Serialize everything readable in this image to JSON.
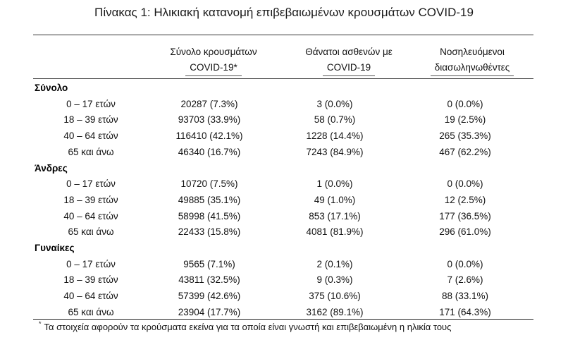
{
  "title": "Πίνακας 1: Ηλικιακή κατανομή επιβεβαιωμένων κρουσμάτων COVID-19",
  "headers": {
    "col1": [
      "Σύνολο κρουσμάτων",
      "COVID-19*"
    ],
    "col2": [
      "Θάνατοι ασθενών με",
      "COVID-19"
    ],
    "col3": [
      "Νοσηλευόμενοι",
      "διασωληνωθέντες"
    ]
  },
  "groups": [
    {
      "name": "Σύνολο",
      "rows": [
        {
          "age": "0 – 17 ετών",
          "cases": "20287 (7.3%)",
          "deaths": "3 (0.0%)",
          "intubated": "0 (0.0%)"
        },
        {
          "age": "18 – 39 ετών",
          "cases": "93703 (33.9%)",
          "deaths": "58 (0.7%)",
          "intubated": "19 (2.5%)"
        },
        {
          "age": "40 – 64 ετών",
          "cases": "116410 (42.1%)",
          "deaths": "1228 (14.4%)",
          "intubated": "265 (35.3%)"
        },
        {
          "age": "65 και άνω",
          "cases": "46340 (16.7%)",
          "deaths": "7243 (84.9%)",
          "intubated": "467 (62.2%)"
        }
      ]
    },
    {
      "name": "Άνδρες",
      "rows": [
        {
          "age": "0 – 17 ετών",
          "cases": "10720 (7.5%)",
          "deaths": "1 (0.0%)",
          "intubated": "0 (0.0%)"
        },
        {
          "age": "18 – 39 ετών",
          "cases": "49885 (35.1%)",
          "deaths": "49 (1.0%)",
          "intubated": "12 (2.5%)"
        },
        {
          "age": "40 – 64 ετών",
          "cases": "58998 (41.5%)",
          "deaths": "853 (17.1%)",
          "intubated": "177 (36.5%)"
        },
        {
          "age": "65 και άνω",
          "cases": "22433 (15.8%)",
          "deaths": "4081 (81.9%)",
          "intubated": "296 (61.0%)"
        }
      ]
    },
    {
      "name": "Γυναίκες",
      "rows": [
        {
          "age": "0 – 17 ετών",
          "cases": "9565 (7.1%)",
          "deaths": "2 (0.1%)",
          "intubated": "0 (0.0%)"
        },
        {
          "age": "18 – 39 ετών",
          "cases": "43811 (32.5%)",
          "deaths": "9 (0.3%)",
          "intubated": "7 (2.6%)"
        },
        {
          "age": "40 – 64 ετών",
          "cases": "57399 (42.6%)",
          "deaths": "375 (10.6%)",
          "intubated": "88 (33.1%)"
        },
        {
          "age": "65 και άνω",
          "cases": "23904 (17.7%)",
          "deaths": "3162 (89.1%)",
          "intubated": "171 (64.3%)"
        }
      ]
    }
  ],
  "footnote": {
    "marker": "*",
    "text": "Τα στοιχεία αφορούν τα κρούσματα εκείνα για τα οποία είναι γνωστή και επιβεβαιωμένη η ηλικία τους"
  }
}
